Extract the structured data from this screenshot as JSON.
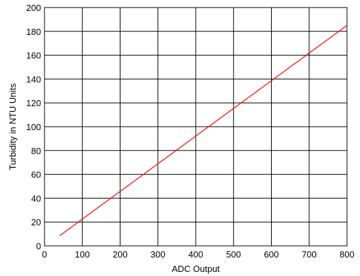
{
  "chart_data": {
    "type": "line",
    "title": "",
    "xlabel": "ADC Output",
    "ylabel": "Turbidity in NTU Units",
    "xlim": [
      0,
      800
    ],
    "ylim": [
      0,
      200
    ],
    "x_ticks": [
      0,
      100,
      200,
      300,
      400,
      500,
      600,
      700,
      800
    ],
    "y_ticks": [
      0,
      20,
      40,
      60,
      80,
      100,
      120,
      140,
      160,
      180,
      200
    ],
    "grid": true,
    "legend": "none",
    "series": [
      {
        "color": "#ff0000",
        "x": [
          40,
          800
        ],
        "y": [
          8.5,
          185
        ]
      }
    ]
  }
}
